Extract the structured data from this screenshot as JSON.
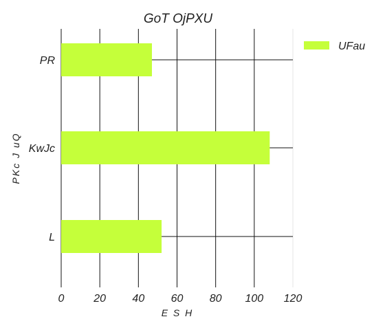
{
  "chart_data": {
    "type": "bar",
    "orientation": "horizontal",
    "title": "GoT OjPXU",
    "xlabel": "E S H",
    "ylabel": "PKc J uQ",
    "categories": [
      "PR",
      "KwJc",
      "L"
    ],
    "series": [
      {
        "name": "UFau",
        "values": [
          47,
          108,
          52
        ],
        "color": "#c5ff3a"
      }
    ],
    "xlim": [
      0,
      120
    ],
    "xticks": [
      0,
      20,
      40,
      60,
      80,
      100,
      120
    ],
    "grid": true,
    "legend_position": "top-right"
  }
}
